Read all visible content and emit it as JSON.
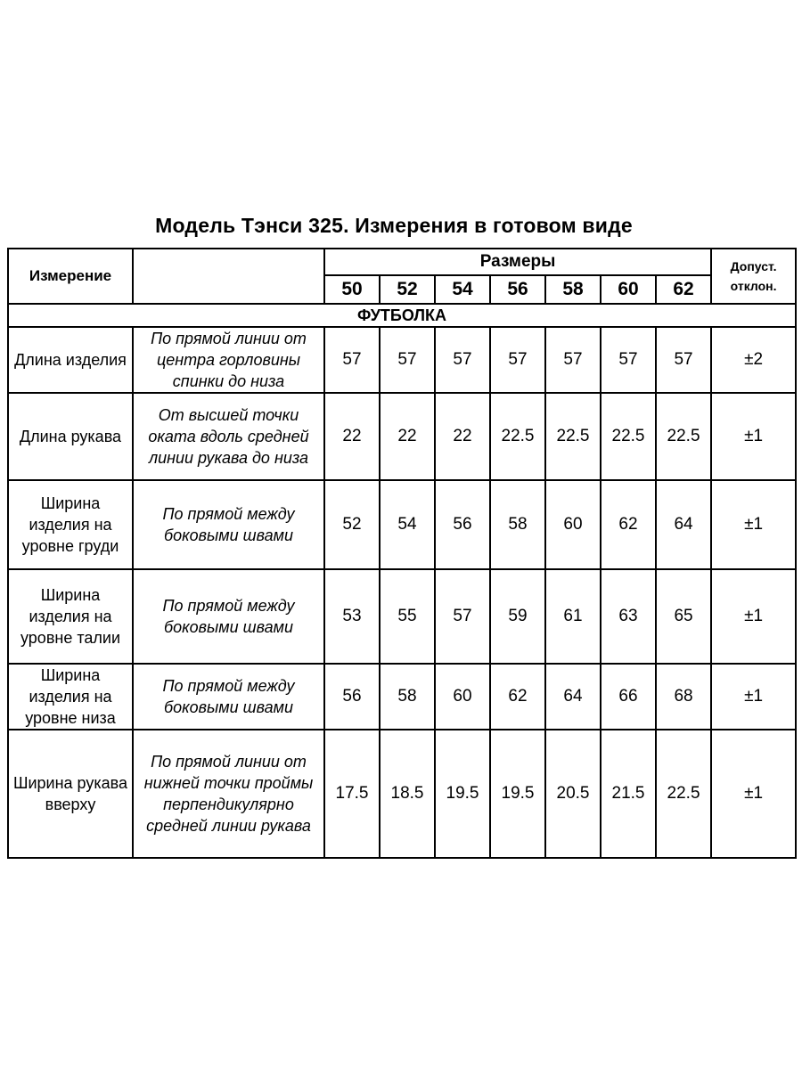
{
  "title": "Модель Тэнси 325. Измерения в готовом виде",
  "header": {
    "measure": "Измерение",
    "sizes_label": "Размеры",
    "sizes": [
      "50",
      "52",
      "54",
      "56",
      "58",
      "60",
      "62"
    ],
    "tolerance": "Допуст. отклон."
  },
  "section": "ФУТБОЛКА",
  "rows": [
    {
      "name": "Длина изделия",
      "desc": "По прямой линии от центра горловины спинки до низа",
      "values": [
        "57",
        "57",
        "57",
        "57",
        "57",
        "57",
        "57"
      ],
      "tol": "±2"
    },
    {
      "name": "Длина рукава",
      "desc": "От высшей точки оката вдоль средней линии рукава до низа",
      "values": [
        "22",
        "22",
        "22",
        "22.5",
        "22.5",
        "22.5",
        "22.5"
      ],
      "tol": "±1"
    },
    {
      "name": "Ширина изделия на уровне груди",
      "desc": "По прямой между боковыми швами",
      "values": [
        "52",
        "54",
        "56",
        "58",
        "60",
        "62",
        "64"
      ],
      "tol": "±1"
    },
    {
      "name": "Ширина изделия на уровне талии",
      "desc": "По прямой между боковыми швами",
      "values": [
        "53",
        "55",
        "57",
        "59",
        "61",
        "63",
        "65"
      ],
      "tol": "±1"
    },
    {
      "name": "Ширина изделия на уровне низа",
      "desc": "По прямой между боковыми швами",
      "values": [
        "56",
        "58",
        "60",
        "62",
        "64",
        "66",
        "68"
      ],
      "tol": "±1"
    },
    {
      "name": "Ширина рукава вверху",
      "desc": "По прямой линии от нижней точки проймы перпендикулярно средней линии рукава",
      "values": [
        "17.5",
        "18.5",
        "19.5",
        "19.5",
        "20.5",
        "21.5",
        "22.5"
      ],
      "tol": "±1"
    }
  ]
}
